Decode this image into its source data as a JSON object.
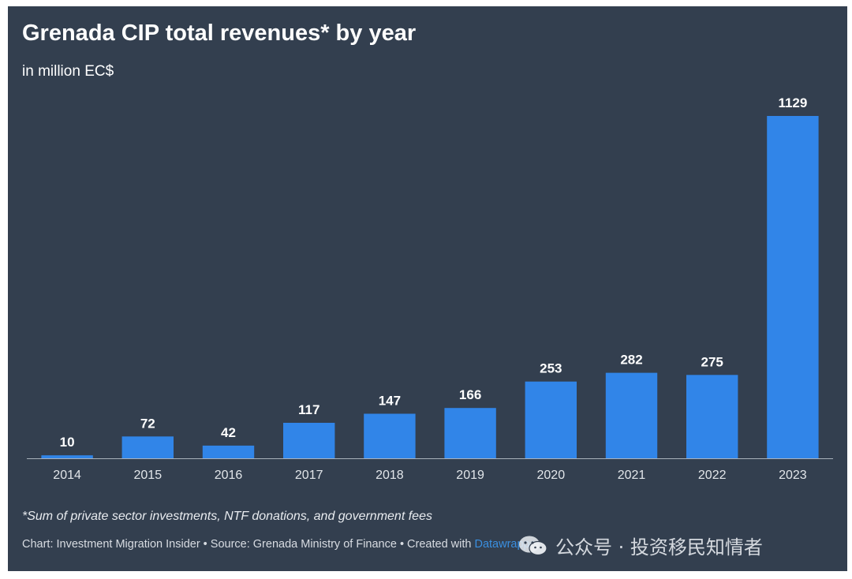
{
  "header": {
    "title": "Grenada CIP total revenues* by year",
    "subtitle": "in million EC$"
  },
  "footer": {
    "footnote": "*Sum of private sector investments, NTF donations, and government fees",
    "credit_prefix": "Chart: Investment Migration Insider • Source: Grenada Ministry of Finance • Created with ",
    "credit_brand": "Datawrapper"
  },
  "watermark": {
    "text": "公众号 · 投资移民知情者",
    "logo_icon": "wechat-icon"
  },
  "colors": {
    "background": "#333f4f",
    "bar": "#3185e8",
    "text": "#ffffff"
  },
  "chart_data": {
    "type": "bar",
    "title": "Grenada CIP total revenues* by year",
    "subtitle": "in million EC$",
    "xlabel": "",
    "ylabel": "",
    "categories": [
      "2014",
      "2015",
      "2016",
      "2017",
      "2018",
      "2019",
      "2020",
      "2021",
      "2022",
      "2023"
    ],
    "values": [
      10,
      72,
      42,
      117,
      147,
      166,
      253,
      282,
      275,
      1129
    ],
    "ylim": [
      0,
      1129
    ],
    "grid": false,
    "legend": "none",
    "data_labels": true
  }
}
